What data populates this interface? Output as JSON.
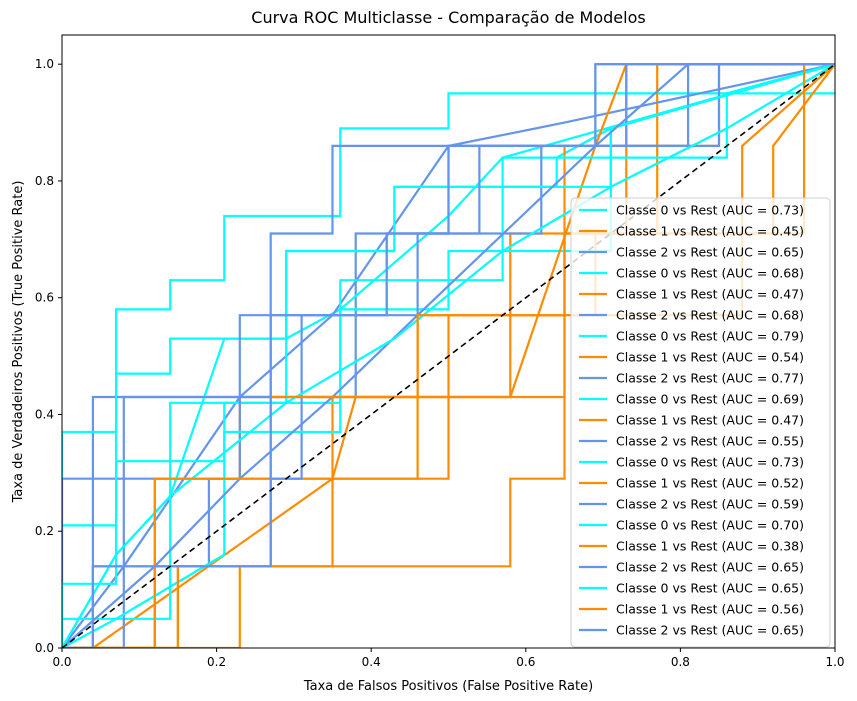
{
  "chart_data": {
    "type": "line",
    "title": "Curva ROC Multiclasse - Comparação de Modelos",
    "xlabel": "Taxa de Falsos Positivos (False Positive Rate)",
    "ylabel": "Taxa de Verdadeiros Positivos (True Positive Rate)",
    "xlim": [
      0.0,
      1.0
    ],
    "ylim": [
      0.0,
      1.05
    ],
    "xticks": [
      "0.0",
      "0.2",
      "0.4",
      "0.6",
      "0.8",
      "1.0"
    ],
    "yticks": [
      "0.0",
      "0.2",
      "0.4",
      "0.6",
      "0.8",
      "1.0"
    ],
    "grid": false,
    "legend_position": "lower right",
    "colors": {
      "class0": "#00ffff",
      "class1": "#ff8c00",
      "class2": "#6495ed",
      "diagonal": "#000000"
    },
    "diagonal": {
      "x": [
        0,
        1
      ],
      "y": [
        0,
        1
      ],
      "style": "dashed"
    },
    "series": [
      {
        "name": "Classe 0 vs Rest (AUC = 0.73)",
        "class": 0,
        "x": [
          0,
          0,
          0.07,
          0.07,
          0.14,
          0.14,
          0.21,
          0.21,
          0.36,
          0.36,
          0.5,
          0.5,
          1
        ],
        "y": [
          0,
          0.21,
          0.21,
          0.58,
          0.58,
          0.63,
          0.63,
          0.74,
          0.74,
          0.89,
          0.89,
          0.95,
          0.95
        ]
      },
      {
        "name": "Classe 1 vs Rest (AUC = 0.45)",
        "class": 1,
        "x": [
          0,
          0.12,
          0.12,
          0.23,
          0.23,
          0.5,
          0.5,
          0.65,
          0.65,
          0.77,
          0.77,
          1
        ],
        "y": [
          0,
          0,
          0.29,
          0.29,
          0.43,
          0.43,
          0.57,
          0.57,
          0.71,
          0.71,
          1,
          1
        ]
      },
      {
        "name": "Classe 2 vs Rest (AUC = 0.65)",
        "class": 2,
        "x": [
          0,
          0.04,
          0.04,
          0.38,
          0.38,
          0.5,
          0.5,
          0.69,
          0.69,
          1
        ],
        "y": [
          0,
          0,
          0.43,
          0.43,
          0.71,
          0.71,
          0.86,
          0.86,
          1,
          1
        ]
      },
      {
        "name": "Classe 0 vs Rest (AUC = 0.68)",
        "class": 0,
        "x": [
          0,
          0.07,
          0.14,
          0.21,
          0.29,
          0.36,
          0.5,
          0.57,
          0.64,
          0.71,
          1
        ],
        "y": [
          0,
          0.16,
          0.26,
          0.53,
          0.53,
          0.58,
          0.74,
          0.84,
          0.84,
          0.89,
          1
        ]
      },
      {
        "name": "Classe 1 vs Rest (AUC = 0.47)",
        "class": 1,
        "x": [
          0,
          0.15,
          0.15,
          0.27,
          0.27,
          0.35,
          0.35,
          0.58,
          0.58,
          0.73,
          0.73,
          1
        ],
        "y": [
          0,
          0,
          0.14,
          0.14,
          0.29,
          0.29,
          0.43,
          0.43,
          0.71,
          0.71,
          1,
          1
        ]
      },
      {
        "name": "Classe 2 vs Rest (AUC = 0.68)",
        "class": 2,
        "x": [
          0,
          0.08,
          0.23,
          0.35,
          0.5,
          0.65,
          1
        ],
        "y": [
          0,
          0.14,
          0.43,
          0.57,
          0.86,
          0.9,
          1
        ]
      },
      {
        "name": "Classe 0 vs Rest (AUC = 0.79)",
        "class": 0,
        "x": [
          0,
          0,
          0.07,
          0.07,
          0.14,
          0.14,
          0.29,
          0.29,
          0.43,
          0.43,
          0.57,
          0.57,
          1
        ],
        "y": [
          0,
          0.37,
          0.37,
          0.47,
          0.47,
          0.53,
          0.53,
          0.68,
          0.68,
          0.79,
          0.79,
          0.84,
          1
        ]
      },
      {
        "name": "Classe 1 vs Rest (AUC = 0.54)",
        "class": 1,
        "x": [
          0,
          0.12,
          0.12,
          0.27,
          0.27,
          0.46,
          0.46,
          0.65,
          0.65,
          0.85,
          0.85,
          1
        ],
        "y": [
          0,
          0,
          0.14,
          0.14,
          0.29,
          0.29,
          0.57,
          0.57,
          0.86,
          0.86,
          1,
          1
        ]
      },
      {
        "name": "Classe 2 vs Rest (AUC = 0.77)",
        "class": 2,
        "x": [
          0,
          0,
          0.08,
          0.08,
          0.27,
          0.27,
          0.35,
          0.35,
          0.5,
          0.5,
          0.85,
          0.85,
          1
        ],
        "y": [
          0,
          0.29,
          0.29,
          0.43,
          0.43,
          0.71,
          0.71,
          0.86,
          0.86,
          0.86,
          0.86,
          1,
          1
        ]
      },
      {
        "name": "Classe 0 vs Rest (AUC = 0.69)",
        "class": 0,
        "x": [
          0,
          0,
          0.07,
          0.07,
          0.21,
          0.21,
          0.36,
          0.36,
          0.5,
          0.5,
          0.71,
          0.71,
          1
        ],
        "y": [
          0,
          0.11,
          0.11,
          0.32,
          0.32,
          0.42,
          0.42,
          0.58,
          0.58,
          0.68,
          0.68,
          0.89,
          1
        ]
      },
      {
        "name": "Classe 1 vs Rest (AUC = 0.47)",
        "class": 1,
        "x": [
          0,
          0.04,
          0.35,
          0.38,
          0.58,
          0.69,
          0.73,
          1
        ],
        "y": [
          0,
          0,
          0.29,
          0.43,
          0.43,
          0.86,
          1,
          1
        ]
      },
      {
        "name": "Classe 2 vs Rest (AUC = 0.55)",
        "class": 2,
        "x": [
          0,
          0.04,
          0.04,
          0.19,
          0.19,
          0.31,
          0.31,
          0.46,
          0.46,
          0.62,
          0.62,
          0.81,
          0.81,
          1
        ],
        "y": [
          0,
          0,
          0.14,
          0.14,
          0.29,
          0.29,
          0.57,
          0.57,
          0.71,
          0.71,
          0.86,
          0.86,
          1,
          1
        ]
      },
      {
        "name": "Classe 0 vs Rest (AUC = 0.73)",
        "class": 0,
        "x": [
          0,
          0,
          0.14,
          0.14,
          0.29,
          0.29,
          0.43,
          0.43,
          0.64,
          0.64,
          0.86,
          0.86,
          1
        ],
        "y": [
          0,
          0.05,
          0.05,
          0.42,
          0.42,
          0.68,
          0.68,
          0.79,
          0.79,
          0.84,
          0.84,
          0.95,
          1
        ]
      },
      {
        "name": "Classe 1 vs Rest (AUC = 0.52)",
        "class": 1,
        "x": [
          0,
          0.23,
          0.23,
          0.58,
          0.58,
          0.65,
          0.65,
          0.92,
          0.92,
          1
        ],
        "y": [
          0,
          0,
          0.14,
          0.14,
          0.29,
          0.29,
          0.71,
          0.71,
          0.86,
          1
        ]
      },
      {
        "name": "Classe 2 vs Rest (AUC = 0.59)",
        "class": 2,
        "x": [
          0,
          0.08,
          0.08,
          0.23,
          0.23,
          0.42,
          0.42,
          0.54,
          0.54,
          0.73,
          0.73,
          0.88,
          1
        ],
        "y": [
          0,
          0,
          0.29,
          0.29,
          0.57,
          0.57,
          0.71,
          0.71,
          0.86,
          0.86,
          1,
          1,
          1
        ]
      },
      {
        "name": "Classe 0 vs Rest (AUC = 0.70)",
        "class": 0,
        "x": [
          0,
          0.07,
          0.21,
          0.21,
          0.36,
          0.36,
          0.57,
          0.57,
          0.71,
          0.71,
          1
        ],
        "y": [
          0,
          0.05,
          0.16,
          0.37,
          0.37,
          0.63,
          0.63,
          0.79,
          0.79,
          0.89,
          1
        ]
      },
      {
        "name": "Classe 1 vs Rest (AUC = 0.38)",
        "class": 1,
        "x": [
          0,
          0.15,
          0.15,
          0.35,
          0.35,
          0.5,
          0.5,
          0.65,
          0.65,
          0.88,
          0.88,
          1
        ],
        "y": [
          0,
          0,
          0.14,
          0.14,
          0.29,
          0.29,
          0.43,
          0.43,
          0.57,
          0.57,
          0.86,
          1
        ]
      },
      {
        "name": "Classe 2 vs Rest (AUC = 0.65)",
        "class": 2,
        "x": [
          0,
          0.12,
          0.23,
          0.35,
          0.46,
          0.69,
          0.81,
          1
        ],
        "y": [
          0,
          0.14,
          0.29,
          0.43,
          0.57,
          0.86,
          1,
          1
        ]
      },
      {
        "name": "Classe 0 vs Rest (AUC = 0.65)",
        "class": 0,
        "x": [
          0,
          0.07,
          0.14,
          0.29,
          0.43,
          0.57,
          0.71,
          0.86,
          1
        ],
        "y": [
          0,
          0.16,
          0.26,
          0.42,
          0.53,
          0.68,
          0.79,
          0.89,
          1
        ]
      },
      {
        "name": "Classe 1 vs Rest (AUC = 0.56)",
        "class": 1,
        "x": [
          0,
          0.12,
          0.12,
          0.27,
          0.27,
          0.46,
          0.46,
          0.69,
          0.69,
          0.96,
          0.96,
          1
        ],
        "y": [
          0,
          0,
          0.29,
          0.29,
          0.43,
          0.43,
          0.57,
          0.57,
          0.71,
          0.71,
          1,
          1
        ]
      },
      {
        "name": "Classe 2 vs Rest (AUC = 0.65)",
        "class": 2,
        "x": [
          0,
          0.04,
          0.04,
          0.27,
          0.27,
          0.42,
          0.42,
          0.5,
          0.5,
          0.69,
          0.69,
          1
        ],
        "y": [
          0,
          0,
          0.14,
          0.14,
          0.57,
          0.57,
          0.71,
          0.71,
          0.86,
          0.86,
          1,
          1
        ]
      }
    ]
  }
}
